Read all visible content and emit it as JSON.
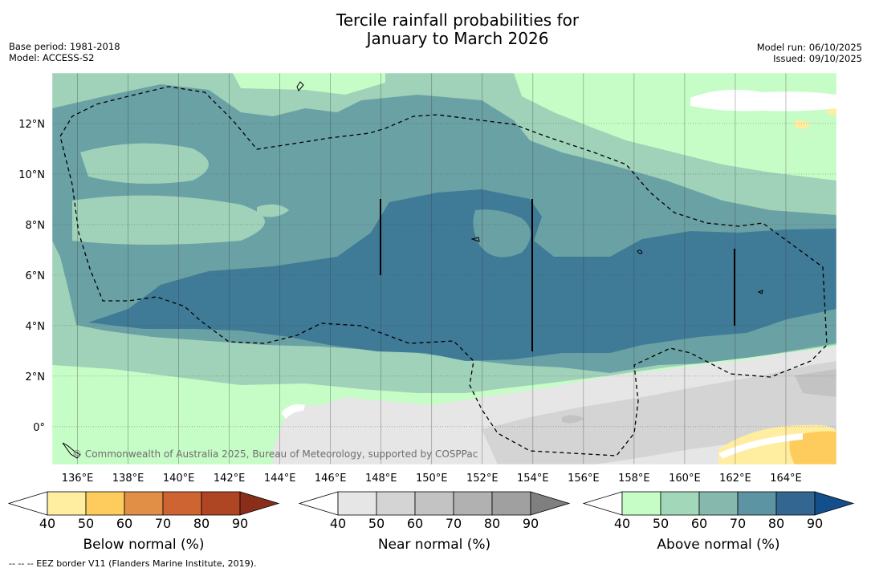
{
  "title": {
    "line1": "Tercile rainfall probabilities for",
    "line2": "January to March 2026"
  },
  "meta_left": {
    "base_period": "Base period: 1981-2018",
    "model": "Model: ACCESS-S2"
  },
  "meta_right": {
    "model_run": "Model run: 06/10/2025",
    "issued": "Issued: 09/10/2025"
  },
  "map": {
    "lat_labels": [
      "12°N",
      "10°N",
      "8°N",
      "6°N",
      "4°N",
      "2°N",
      "0°"
    ],
    "lat_values": [
      12,
      10,
      8,
      6,
      4,
      2,
      0
    ],
    "lon_labels": [
      "136°E",
      "138°E",
      "140°E",
      "142°E",
      "144°E",
      "146°E",
      "148°E",
      "150°E",
      "152°E",
      "154°E",
      "156°E",
      "158°E",
      "160°E",
      "162°E",
      "164°E"
    ],
    "lon_values": [
      136,
      138,
      140,
      142,
      144,
      146,
      148,
      150,
      152,
      154,
      156,
      158,
      160,
      162,
      164
    ],
    "lon_range": [
      135,
      166
    ],
    "lat_range": [
      -1.5,
      14
    ],
    "copyright": "© Commonwealth of Australia 2025, Bureau of Meteorology, supported by COSPPac",
    "colors": {
      "above_40": "#c6fcc6",
      "above_50": "#9fd2b9",
      "above_60": "#6aa1a4",
      "above_70": "#3f7a97",
      "near_40": "#e6e6e6",
      "near_50": "#d4d4d4",
      "near_60": "#c3c3c3",
      "below_40": "#ffeda0",
      "below_50": "#fecc5c"
    }
  },
  "legends": [
    {
      "id": "below",
      "title": "Below normal (%)",
      "ticks": [
        "40",
        "50",
        "60",
        "70",
        "80",
        "90"
      ],
      "colors": [
        "#ffeda0",
        "#fecc5c",
        "#e18e46",
        "#cd6431",
        "#ae4523",
        "#8a2e1a"
      ]
    },
    {
      "id": "near",
      "title": "Near normal (%)",
      "ticks": [
        "40",
        "50",
        "60",
        "70",
        "80",
        "90"
      ],
      "colors": [
        "#e6e6e6",
        "#d4d4d4",
        "#c3c3c3",
        "#b1b1b1",
        "#a0a0a0",
        "#7f7f7f"
      ]
    },
    {
      "id": "above",
      "title": "Above normal (%)",
      "ticks": [
        "40",
        "50",
        "60",
        "70",
        "80",
        "90"
      ],
      "colors": [
        "#c6fcc6",
        "#a2d8b9",
        "#87b8ae",
        "#5d94a4",
        "#336690",
        "#124f8b"
      ]
    }
  ],
  "footer": "--  --  -- EEZ border V11 (Flanders Marine Institute, 2019)."
}
